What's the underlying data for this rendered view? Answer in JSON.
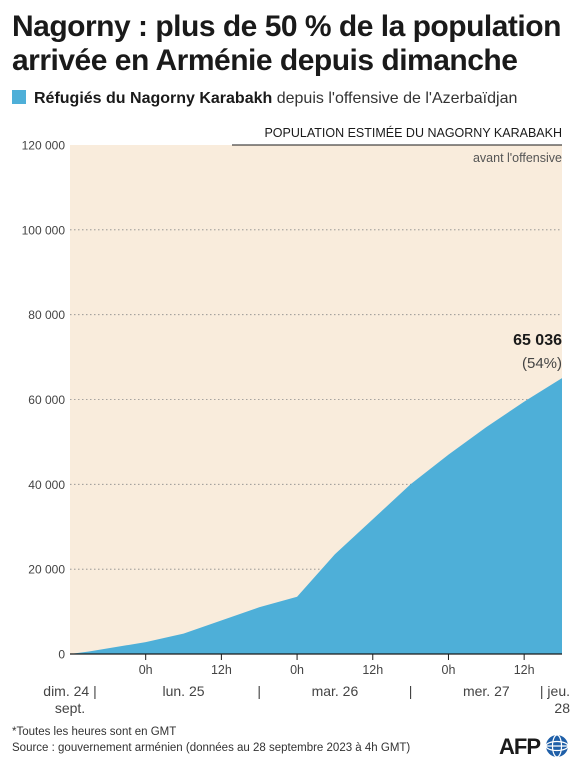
{
  "header": {
    "title": "Nagorny : plus de 50 % de la population arrivée en Arménie depuis dimanche",
    "legend_bold": "Réfugiés du Nagorny Karabakh",
    "legend_rest": "depuis l'offensive de l'Azerbaïdjan"
  },
  "chart_data": {
    "type": "area",
    "title": "",
    "series": [
      {
        "name": "Réfugiés du Nagorny Karabakh",
        "color": "#4eafd8",
        "x_hours": [
          0,
          3,
          12,
          18,
          30,
          36,
          42,
          54,
          60,
          66,
          72,
          78
        ],
        "values": [
          0,
          600,
          2800,
          4800,
          11000,
          13500,
          23500,
          40000,
          47000,
          53500,
          59500,
          65036
        ]
      }
    ],
    "note": "x measured in hours from dim. 24 sept. 12h GMT",
    "ylim": [
      0,
      120000
    ],
    "yticks": [
      "0",
      "20 000",
      "40 000",
      "60 000",
      "80 000",
      "100 000",
      "120 000"
    ],
    "ytick_values": [
      0,
      20000,
      40000,
      60000,
      80000,
      100000,
      120000
    ],
    "xlim_hours": [
      0,
      78
    ],
    "hour_ticks": [
      {
        "h": 12,
        "label": "0h"
      },
      {
        "h": 24,
        "label": "12h"
      },
      {
        "h": 36,
        "label": "0h"
      },
      {
        "h": 48,
        "label": "12h"
      },
      {
        "h": 60,
        "label": "0h"
      },
      {
        "h": 72,
        "label": "12h"
      },
      {
        "h": 84,
        "label": "0h"
      }
    ],
    "day_labels": [
      {
        "h": 0,
        "lines": [
          "dim. 24 |",
          "sept."
        ]
      },
      {
        "h": 18,
        "lines": [
          "lun. 25"
        ]
      },
      {
        "h": 30,
        "lines": [
          "|"
        ]
      },
      {
        "h": 42,
        "lines": [
          "mar. 26"
        ]
      },
      {
        "h": 54,
        "lines": [
          "|"
        ]
      },
      {
        "h": 66,
        "lines": [
          "mer. 27"
        ]
      },
      {
        "h": 78,
        "lines": [
          "| jeu.",
          "28"
        ]
      }
    ],
    "population_band": {
      "value": 120000,
      "label": "POPULATION ESTIMÉE DU NAGORNY KARABAKH",
      "sublabel": "avant l'offensive",
      "color": "#f9ecdc"
    },
    "annotation": {
      "value_text": "65 036",
      "pct_text": "(54%)"
    },
    "grid": true
  },
  "footer": {
    "note": "*Toutes les heures sont en GMT",
    "source": "Source : gouvernement arménien (données au 28 septembre 2023 à 4h GMT)",
    "logo_text": "AFP"
  }
}
